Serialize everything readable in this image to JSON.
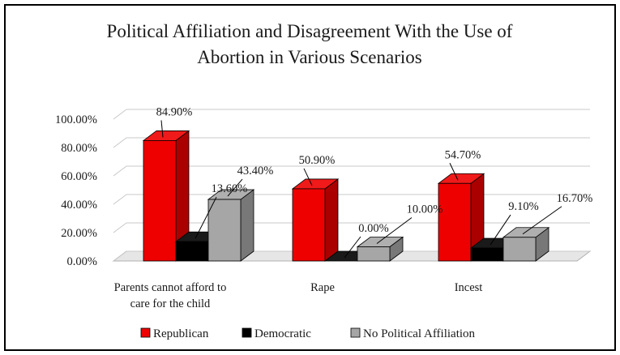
{
  "chart_data": {
    "type": "bar",
    "title_lines": [
      "Political Affiliation and Disagreement With the Use of",
      "Abortion in Various Scenarios"
    ],
    "categories": [
      [
        "Parents cannot afford to",
        "care for the child"
      ],
      [
        "Rape"
      ],
      [
        "Incest"
      ]
    ],
    "series": [
      {
        "name": "Republican",
        "color": "#ee0000",
        "values": [
          84.9,
          50.9,
          54.7
        ],
        "labels": [
          "84.90%",
          "50.90%",
          "54.70%"
        ]
      },
      {
        "name": "Democratic",
        "color": "#000000",
        "values": [
          13.6,
          0.0,
          9.1
        ],
        "labels": [
          "13.60%",
          "0.00%",
          "9.10%"
        ]
      },
      {
        "name": "No Political Affiliation",
        "color": "#a6a6a6",
        "values": [
          43.4,
          10.0,
          16.7
        ],
        "labels": [
          "43.40%",
          "10.00%",
          "16.70%"
        ]
      }
    ],
    "yticks": [
      "0.00%",
      "20.00%",
      "40.00%",
      "60.00%",
      "80.00%",
      "100.00%"
    ],
    "ylim": [
      0,
      100
    ],
    "legend_position": "bottom",
    "grid": true,
    "three_d": true
  }
}
